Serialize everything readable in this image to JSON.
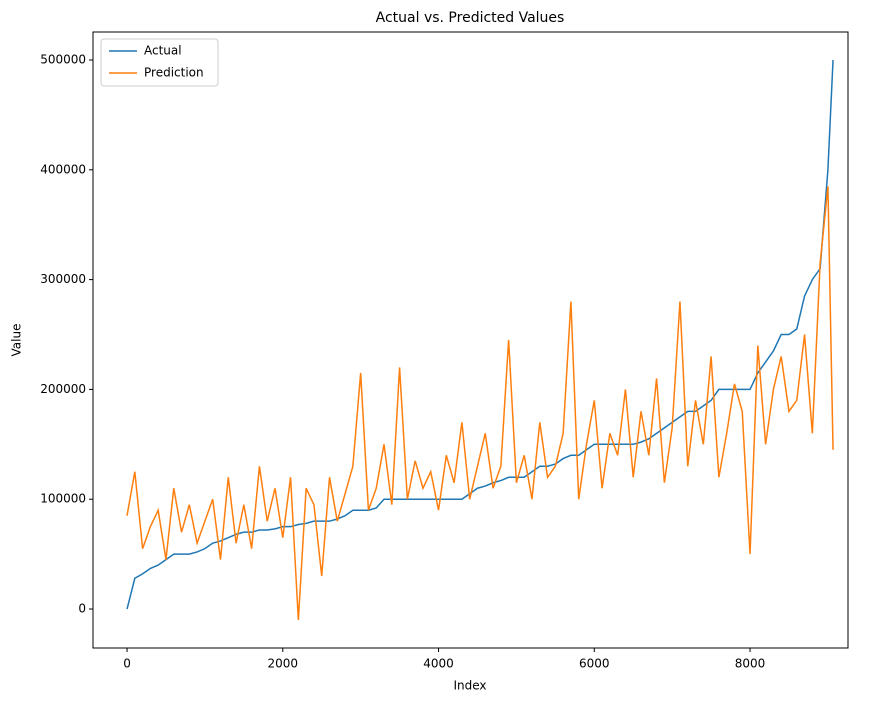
{
  "chart_data": {
    "type": "line",
    "title": "Actual vs. Predicted Values",
    "x_label": "Index",
    "y_label": "Value",
    "x": [
      0,
      100,
      200,
      300,
      400,
      500,
      600,
      700,
      800,
      900,
      1000,
      1100,
      1200,
      1300,
      1400,
      1500,
      1600,
      1700,
      1800,
      1900,
      2000,
      2100,
      2200,
      2300,
      2400,
      2500,
      2600,
      2700,
      2800,
      2900,
      3000,
      3100,
      3200,
      3300,
      3400,
      3500,
      3600,
      3700,
      3800,
      3900,
      4000,
      4100,
      4200,
      4300,
      4400,
      4500,
      4600,
      4700,
      4800,
      4900,
      5000,
      5100,
      5200,
      5300,
      5400,
      5500,
      5600,
      5700,
      5800,
      5900,
      6000,
      6100,
      6200,
      6300,
      6400,
      6500,
      6600,
      6700,
      6800,
      6900,
      7000,
      7100,
      7200,
      7300,
      7400,
      7500,
      7600,
      7700,
      7800,
      7900,
      8000,
      8100,
      8200,
      8300,
      8400,
      8500,
      8600,
      8700,
      8800,
      8900,
      9000,
      9066
    ],
    "series": [
      {
        "name": "Actual",
        "color": "#1f77b4",
        "values": [
          0,
          28000,
          32000,
          37000,
          40000,
          45000,
          50000,
          50000,
          50000,
          52000,
          55000,
          60000,
          62000,
          65000,
          68000,
          70000,
          70000,
          72000,
          72000,
          73000,
          75000,
          75000,
          77000,
          78000,
          80000,
          80000,
          80000,
          82000,
          85000,
          90000,
          90000,
          90000,
          92000,
          100000,
          100000,
          100000,
          100000,
          100000,
          100000,
          100000,
          100000,
          100000,
          100000,
          100000,
          105000,
          110000,
          112000,
          115000,
          117000,
          120000,
          120000,
          120000,
          125000,
          130000,
          130000,
          132000,
          137000,
          140000,
          140000,
          145000,
          150000,
          150000,
          150000,
          150000,
          150000,
          150000,
          152000,
          155000,
          160000,
          165000,
          170000,
          175000,
          180000,
          180000,
          185000,
          190000,
          200000,
          200000,
          200000,
          200000,
          200000,
          215000,
          225000,
          235000,
          250000,
          250000,
          255000,
          285000,
          300000,
          310000,
          400000,
          500000
        ]
      },
      {
        "name": "Prediction",
        "color": "#ff7f0e",
        "values": [
          85000,
          125000,
          55000,
          75000,
          90000,
          45000,
          110000,
          70000,
          95000,
          60000,
          80000,
          100000,
          45000,
          120000,
          60000,
          95000,
          55000,
          130000,
          80000,
          110000,
          65000,
          120000,
          -10000,
          110000,
          95000,
          30000,
          120000,
          80000,
          105000,
          130000,
          215000,
          90000,
          110000,
          150000,
          95000,
          220000,
          100000,
          135000,
          110000,
          125000,
          90000,
          140000,
          115000,
          170000,
          100000,
          130000,
          160000,
          110000,
          130000,
          245000,
          115000,
          140000,
          100000,
          170000,
          120000,
          130000,
          160000,
          280000,
          100000,
          150000,
          190000,
          110000,
          160000,
          140000,
          200000,
          120000,
          180000,
          140000,
          210000,
          115000,
          165000,
          280000,
          130000,
          190000,
          150000,
          230000,
          120000,
          160000,
          205000,
          180000,
          50000,
          240000,
          150000,
          200000,
          230000,
          180000,
          190000,
          250000,
          160000,
          315000,
          385000,
          145000
        ]
      }
    ],
    "xlim": [
      -437,
      9258
    ],
    "ylim": [
      -35500,
      525500
    ],
    "xticks": [
      0,
      2000,
      4000,
      6000,
      8000
    ],
    "yticks": [
      0,
      100000,
      200000,
      300000,
      400000,
      500000
    ],
    "legend": "upper left"
  }
}
